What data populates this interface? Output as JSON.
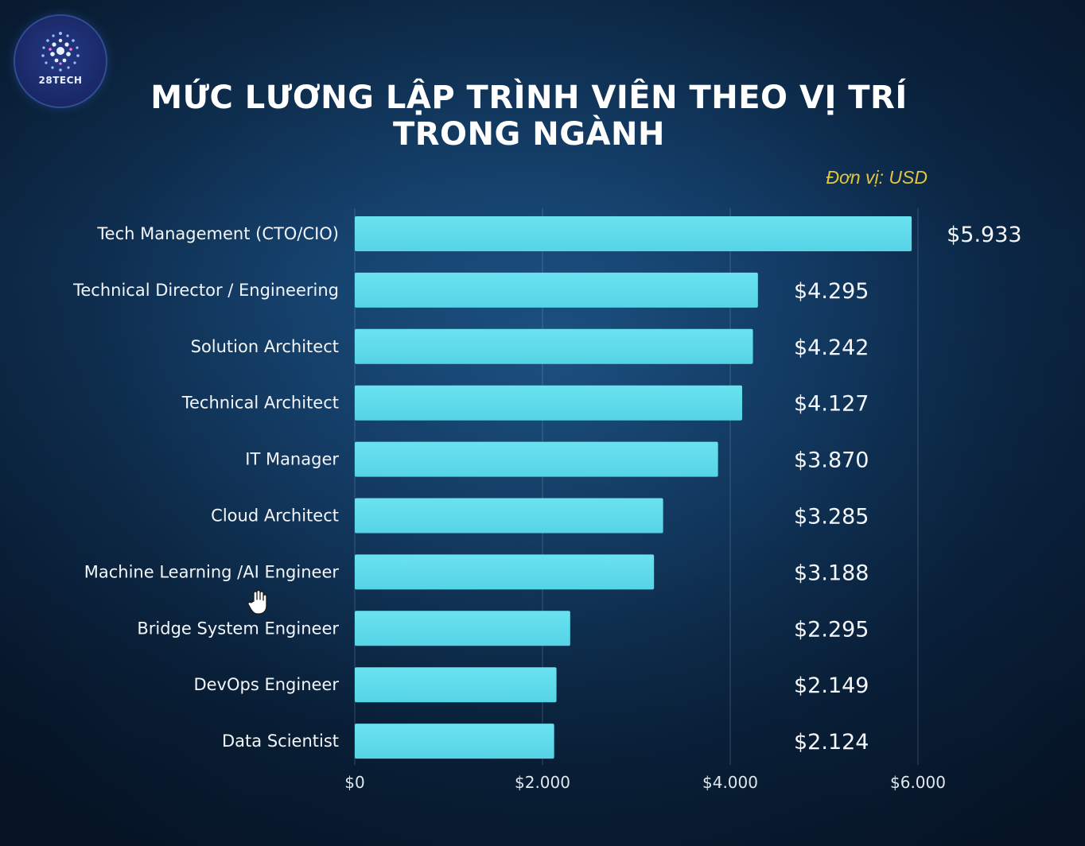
{
  "brand": {
    "logo_text": "28TECH"
  },
  "header": {
    "title": "MỨC LƯƠNG LẬP TRÌNH VIÊN THEO VỊ TRÍ TRONG NGÀNH",
    "unit_note": "Đơn vị: USD"
  },
  "chart_data": {
    "type": "bar",
    "orientation": "horizontal",
    "title": "MỨC LƯƠNG LẬP TRÌNH VIÊN THEO VỊ TRÍ TRONG NGÀNH",
    "xlabel": "",
    "ylabel": "",
    "unit": "USD",
    "xlim": [
      0,
      6000
    ],
    "ticks": [
      0,
      2000,
      4000,
      6000
    ],
    "tick_labels": [
      "$0",
      "$2.000",
      "$4.000",
      "$6.000"
    ],
    "grid": true,
    "bar_color": "#5fdcec",
    "categories": [
      "Tech Management (CTO/CIO)",
      "Technical Director / Engineering",
      "Solution Architect",
      "Technical Architect",
      "IT Manager",
      "Cloud Architect",
      "Machine Learning /AI Engineer",
      "Bridge System Engineer",
      "DevOps Engineer",
      "Data Scientist"
    ],
    "values": [
      5933,
      4295,
      4242,
      4127,
      3870,
      3285,
      3188,
      2295,
      2149,
      2124
    ],
    "value_labels": [
      "$5.933",
      "$4.295",
      "$4.242",
      "$4.127",
      "$3.870",
      "$3.285",
      "$3.188",
      "$2.295",
      "$2.149",
      "$2.124"
    ]
  }
}
